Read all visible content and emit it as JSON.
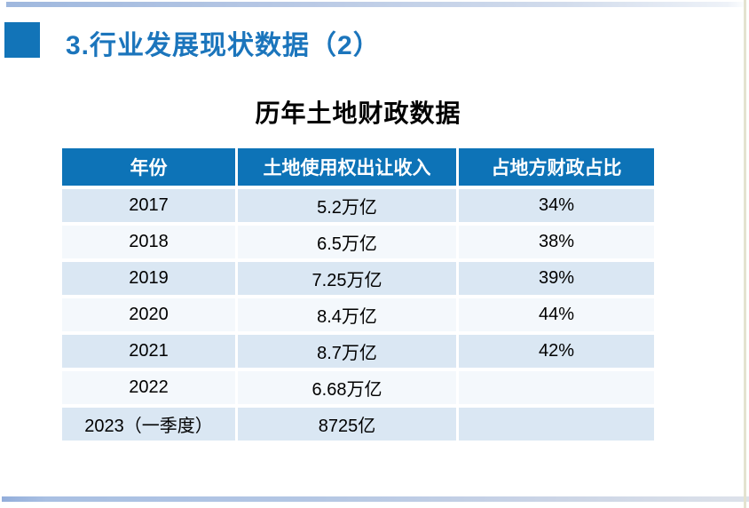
{
  "slide": {
    "title": "3.行业发展现状数据（2）",
    "table_title": "历年土地财政数据"
  },
  "table": {
    "headers": [
      "年份",
      "土地使用权出让收入",
      "占地方财政占比"
    ],
    "rows": [
      [
        "2017",
        "5.2万亿",
        "34%"
      ],
      [
        "2018",
        "6.5万亿",
        "38%"
      ],
      [
        "2019",
        "7.25万亿",
        "39%"
      ],
      [
        "2020",
        "8.4万亿",
        "44%"
      ],
      [
        "2021",
        "8.7万亿",
        "42%"
      ],
      [
        "2022",
        "6.68万亿",
        ""
      ],
      [
        "2023（一季度）",
        "8725亿",
        ""
      ]
    ]
  },
  "colors": {
    "accent_blue": "#1274b8",
    "header_blue": "#0d73b7",
    "title_text_blue": "#1b75bc",
    "row_light_blue": "#dae7f3",
    "row_near_white": "#f4f8fc",
    "deco_bar_blue": "#a9c0e3",
    "right_edge_tan": "#e4e3d0"
  }
}
